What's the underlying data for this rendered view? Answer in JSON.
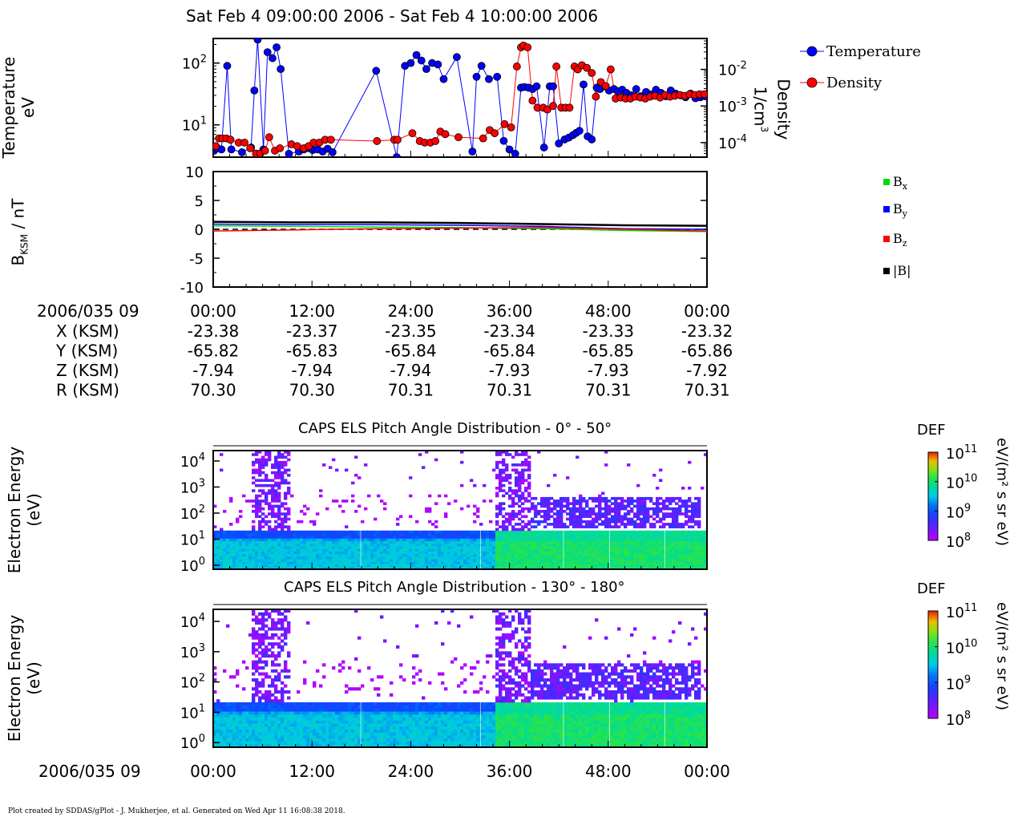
{
  "title": "Sat Feb 4 09:00:00 2006 - Sat Feb 4 10:00:00 2006",
  "footer": "Plot created by SDDAS/gPlot - J. Mukherjee, et al.  Generated on Wed Apr 11 16:08:38 2018.",
  "colors": {
    "temperature": "#0000ff",
    "density": "#ff0000",
    "bx": "#00dd00",
    "by": "#0000ff",
    "bz": "#ff0000",
    "b": "#000000"
  },
  "x_ticks": [
    "00:00",
    "12:00",
    "24:00",
    "36:00",
    "48:00",
    "00:00"
  ],
  "orbit": {
    "date": "2006/035 09",
    "rows": [
      {
        "label": "X (KSM)",
        "values": [
          "-23.38",
          "-23.37",
          "-23.35",
          "-23.34",
          "-23.33",
          "-23.32"
        ]
      },
      {
        "label": "Y (KSM)",
        "values": [
          "-65.82",
          "-65.83",
          "-65.84",
          "-65.84",
          "-65.85",
          "-65.86"
        ]
      },
      {
        "label": "Z (KSM)",
        "values": [
          "-7.94",
          "-7.94",
          "-7.94",
          "-7.93",
          "-7.93",
          "-7.92"
        ]
      },
      {
        "label": "R (KSM)",
        "values": [
          "70.30",
          "70.30",
          "70.31",
          "70.31",
          "70.31",
          "70.31"
        ]
      }
    ]
  },
  "bottom_axis": {
    "date": "2006/035 09"
  },
  "chart_data": [
    {
      "type": "line",
      "ylabel_line1": "Temperature",
      "ylabel_line2": "eV",
      "y2label_line1": "Density",
      "y2label_line2": "1/cm",
      "y2label_sup": "3",
      "yscale": "log",
      "ylim": [
        3,
        250
      ],
      "y2lim": [
        4e-05,
        0.07
      ],
      "xlim": [
        0,
        60
      ],
      "x_unit": "minutes past 09:00",
      "yticks": [
        {
          "base": "10",
          "exp": "2"
        },
        {
          "base": "10",
          "exp": "1"
        }
      ],
      "y2ticks": [
        {
          "base": "10",
          "exp": "-2"
        },
        {
          "base": "10",
          "exp": "-3"
        },
        {
          "base": "10",
          "exp": "-4"
        }
      ],
      "legend_position": "top-right",
      "series": [
        {
          "name": "Temperature",
          "x": [
            0.1,
            0.5,
            1.0,
            1.7,
            2.2,
            3.5,
            4.6,
            5.0,
            5.4,
            6.1,
            6.6,
            7.2,
            7.7,
            8.2,
            9.2,
            10.4,
            11.0,
            11.6,
            12.1,
            12.7,
            13.3,
            13.9,
            14.5,
            19.8,
            22.3,
            23.3,
            24.0,
            24.7,
            25.3,
            25.9,
            26.6,
            27.3,
            28.0,
            29.6,
            31.5,
            32.0,
            32.6,
            33.5,
            34.5,
            35.3,
            36.0,
            36.7,
            37.4,
            37.8,
            38.3,
            38.8,
            39.3,
            40.2,
            40.9,
            41.3,
            42.0,
            42.7,
            43.2,
            43.7,
            44.1,
            44.5,
            45.0,
            45.5,
            46.0,
            46.6,
            47.0,
            47.6,
            48.1,
            48.7,
            49.2,
            49.7,
            50.2,
            50.8,
            51.4,
            52.0,
            52.6,
            53.2,
            53.8,
            54.4,
            55.0,
            55.6,
            56.2,
            56.8,
            57.4,
            58.0,
            58.6,
            59.2,
            59.8
          ],
          "values": [
            3.8,
            4.2,
            4.0,
            90,
            4.0,
            3.6,
            4.3,
            36,
            240,
            4.0,
            150,
            120,
            180,
            80,
            3.4,
            3.7,
            4.0,
            4.2,
            3.9,
            4.0,
            3.7,
            4.1,
            3.6,
            75,
            3.0,
            90,
            100,
            135,
            110,
            80,
            100,
            95,
            55,
            125,
            3.7,
            60,
            90,
            55,
            60,
            5.5,
            4.0,
            3.4,
            40,
            41,
            40,
            38,
            42,
            4.3,
            42,
            42,
            5.0,
            5.8,
            6.2,
            6.8,
            7.4,
            8.0,
            45,
            6.5,
            5.8,
            40,
            38,
            42,
            36,
            38,
            35,
            37,
            33,
            30,
            38,
            29,
            34,
            31,
            37,
            33,
            29,
            36,
            32,
            30,
            28,
            32,
            27,
            28,
            29
          ]
        },
        {
          "name": "Density",
          "x": [
            0.3,
            0.7,
            1.1,
            1.6,
            2.1,
            3.1,
            3.8,
            4.5,
            5.2,
            5.7,
            6.3,
            6.8,
            7.5,
            8.1,
            9.5,
            10.2,
            11.0,
            11.6,
            12.2,
            12.9,
            13.6,
            14.3,
            19.9,
            22.0,
            22.4,
            24.2,
            25.1,
            25.7,
            26.4,
            27.0,
            27.6,
            28.2,
            29.8,
            32.8,
            33.6,
            34.2,
            35.4,
            36.2,
            36.9,
            37.4,
            37.7,
            38.2,
            38.8,
            39.4,
            40.1,
            40.6,
            41.3,
            41.7,
            42.3,
            42.8,
            43.3,
            43.9,
            44.3,
            44.8,
            45.4,
            46.0,
            46.5,
            47.1,
            47.7,
            48.3,
            48.9,
            49.5,
            50.1,
            50.7,
            51.3,
            51.9,
            52.5,
            53.1,
            53.7,
            54.3,
            54.9,
            55.5,
            56.1,
            56.7,
            57.3,
            57.9,
            58.5,
            59.1,
            59.7
          ],
          "values": [
            8e-05,
            0.00013,
            0.00013,
            0.00013,
            0.00012,
            0.0001,
            0.0001,
            7e-05,
            5e-05,
            5e-05,
            6e-05,
            0.00014,
            6e-05,
            7e-05,
            9e-05,
            8e-05,
            7e-05,
            8e-05,
            0.0001,
            0.0001,
            0.00012,
            0.00012,
            0.00011,
            0.00012,
            0.00012,
            0.00018,
            0.00011,
            0.0001,
            0.0001,
            0.00011,
            0.0002,
            0.00017,
            0.00014,
            0.00013,
            0.00022,
            0.00018,
            0.00032,
            0.00026,
            0.012,
            0.04,
            0.045,
            0.04,
            0.0014,
            0.0009,
            0.0009,
            0.0008,
            0.001,
            0.012,
            0.0009,
            0.0009,
            0.0009,
            0.012,
            0.01,
            0.013,
            0.011,
            0.008,
            0.0018,
            0.0045,
            0.0035,
            0.01,
            0.0016,
            0.0017,
            0.0016,
            0.0016,
            0.0018,
            0.0017,
            0.0016,
            0.0018,
            0.0019,
            0.0017,
            0.002,
            0.0018,
            0.0019,
            0.002,
            0.0019,
            0.0021,
            0.002,
            0.0021,
            0.0021
          ]
        }
      ]
    },
    {
      "type": "line",
      "ylabel_main": "B",
      "ylabel_sub": "KSM",
      "ylabel_rest": " / nT",
      "ylim": [
        -10,
        10
      ],
      "xlim": [
        0,
        60
      ],
      "yticks": [
        "10",
        "5",
        "0",
        "-5",
        "-10"
      ],
      "legend_position": "right",
      "series": [
        {
          "name": "B",
          "sub": "x",
          "x": [
            0,
            10,
            20,
            30,
            40,
            50,
            60
          ],
          "values": [
            0.6,
            0.5,
            0.4,
            0.3,
            0.1,
            -0.2,
            -0.4
          ]
        },
        {
          "name": "B",
          "sub": "y",
          "x": [
            0,
            10,
            20,
            30,
            40,
            50,
            60
          ],
          "values": [
            0.9,
            0.8,
            0.8,
            0.7,
            0.5,
            0.1,
            0.0
          ]
        },
        {
          "name": "B",
          "sub": "z",
          "x": [
            0,
            10,
            20,
            30,
            40,
            50,
            60
          ],
          "values": [
            -0.3,
            -0.1,
            0.1,
            0.2,
            0.3,
            0.0,
            -0.3
          ]
        },
        {
          "name": "|B|",
          "sub": "",
          "x": [
            0,
            10,
            20,
            30,
            40,
            50,
            60
          ],
          "values": [
            1.3,
            1.2,
            1.2,
            1.1,
            0.9,
            0.7,
            0.6
          ]
        }
      ],
      "reference_line": {
        "y": 0,
        "style": "dashed"
      }
    },
    {
      "type": "heatmap",
      "title": "CAPS ELS Pitch Angle Distribution - 0° - 50°",
      "ylabel_line1": "Electron Energy",
      "ylabel_line2": "(eV)",
      "yscale": "log",
      "ylim": [
        0.7,
        25000
      ],
      "yticks": [
        {
          "base": "10",
          "exp": "4"
        },
        {
          "base": "10",
          "exp": "3"
        },
        {
          "base": "10",
          "exp": "2"
        },
        {
          "base": "10",
          "exp": "1"
        },
        {
          "base": "10",
          "exp": "0"
        }
      ],
      "colorbar": {
        "label": "DEF",
        "units": "eV/(m² s sr eV)",
        "range": [
          100000000,
          100000000000
        ],
        "ticks": [
          {
            "base": "10",
            "exp": "11"
          },
          {
            "base": "10",
            "exp": "10"
          },
          {
            "base": "10",
            "exp": "9"
          },
          {
            "base": "10",
            "exp": "8"
          }
        ]
      }
    },
    {
      "type": "heatmap",
      "title": "CAPS ELS Pitch Angle Distribution - 130° - 180°",
      "ylabel_line1": "Electron Energy",
      "ylabel_line2": "(eV)",
      "yscale": "log",
      "ylim": [
        0.7,
        25000
      ],
      "yticks": [
        {
          "base": "10",
          "exp": "4"
        },
        {
          "base": "10",
          "exp": "3"
        },
        {
          "base": "10",
          "exp": "2"
        },
        {
          "base": "10",
          "exp": "1"
        },
        {
          "base": "10",
          "exp": "0"
        }
      ],
      "colorbar": {
        "label": "DEF",
        "units": "eV/(m² s sr eV)",
        "range": [
          100000000,
          100000000000
        ],
        "ticks": [
          {
            "base": "10",
            "exp": "11"
          },
          {
            "base": "10",
            "exp": "10"
          },
          {
            "base": "10",
            "exp": "9"
          },
          {
            "base": "10",
            "exp": "8"
          }
        ]
      }
    }
  ]
}
